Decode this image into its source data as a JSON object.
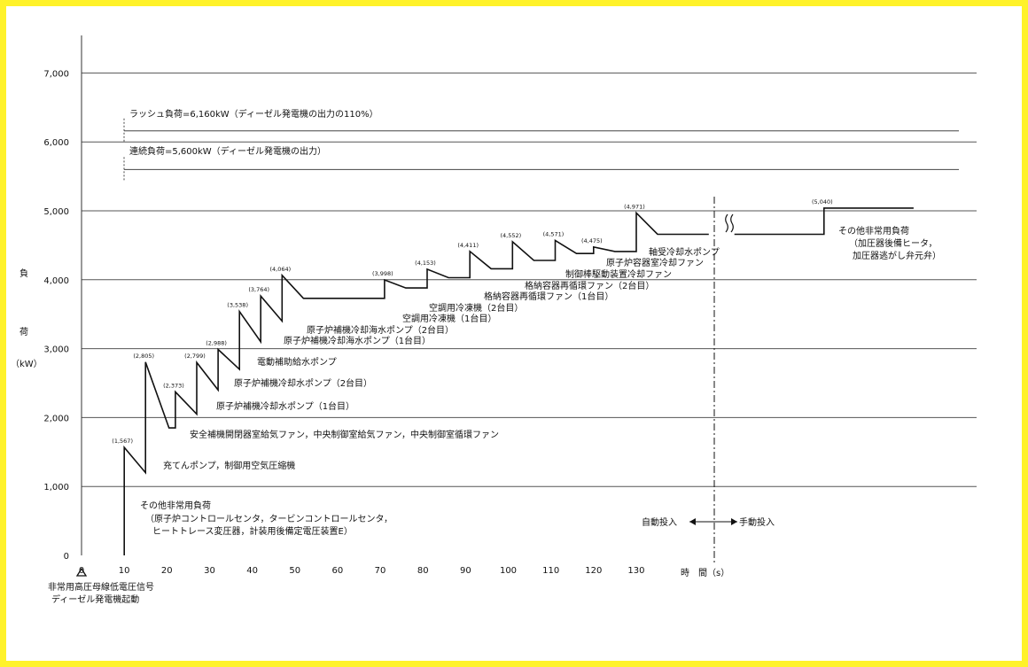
{
  "chart_data": {
    "type": "line",
    "title": "",
    "xlabel": "時　間（s）",
    "ylabel": [
      "負",
      "荷",
      "（kW）"
    ],
    "x_ticks": [
      "0",
      "10",
      "20",
      "30",
      "40",
      "50",
      "60",
      "70",
      "80",
      "90",
      "100",
      "110",
      "120",
      "130"
    ],
    "y_ticks": [
      "0",
      "1,000",
      "2,000",
      "3,000",
      "4,000",
      "5,000",
      "6,000",
      "7,000"
    ],
    "xlim": [
      0,
      140
    ],
    "ylim": [
      0,
      7000
    ],
    "grid": "horizontal",
    "ref_lines": [
      {
        "value": 6160,
        "label": "ラッシュ負荷=6,160kW（ディーゼル発電機の出力の110%）"
      },
      {
        "value": 5600,
        "label": "連続負荷=5,600kW（ディーゼル発電機の出力）"
      }
    ],
    "series": [
      {
        "points": [
          [
            10,
            0
          ],
          [
            10,
            1567
          ],
          [
            15,
            1200
          ],
          [
            15,
            2805
          ],
          [
            20.5,
            1850
          ],
          [
            22,
            1850
          ],
          [
            22,
            2373
          ],
          [
            27,
            2050
          ],
          [
            27,
            2799
          ],
          [
            32,
            2400
          ],
          [
            32,
            2988
          ],
          [
            37,
            2700
          ],
          [
            37,
            3538
          ],
          [
            42,
            3100
          ],
          [
            42,
            3764
          ],
          [
            47,
            3400
          ],
          [
            47,
            4064
          ],
          [
            52,
            3730
          ],
          [
            71,
            3730
          ],
          [
            71,
            3998
          ],
          [
            76,
            3880
          ],
          [
            81,
            3880
          ],
          [
            81,
            4153
          ],
          [
            86,
            4030
          ],
          [
            91,
            4030
          ],
          [
            91,
            4411
          ],
          [
            96,
            4160
          ],
          [
            101,
            4160
          ],
          [
            101,
            4552
          ],
          [
            106,
            4280
          ],
          [
            111,
            4280
          ],
          [
            111,
            4571
          ],
          [
            116,
            4380
          ],
          [
            120,
            4380
          ],
          [
            120,
            4475
          ],
          [
            125,
            4410
          ],
          [
            130,
            4410
          ],
          [
            130,
            4971
          ],
          [
            135,
            4660
          ],
          [
            147,
            4660
          ]
        ]
      },
      {
        "points": [
          [
            153,
            4660
          ],
          [
            174,
            4660
          ],
          [
            174,
            5040
          ],
          [
            195,
            5040
          ]
        ]
      }
    ],
    "peak_labels": [
      {
        "x": 10,
        "y": 1567,
        "text": "(1,567)"
      },
      {
        "x": 15,
        "y": 2805,
        "text": "(2,805)"
      },
      {
        "x": 22,
        "y": 2373,
        "text": "(2,373)"
      },
      {
        "x": 27,
        "y": 2799,
        "text": "(2,799)"
      },
      {
        "x": 32,
        "y": 2988,
        "text": "(2,988)"
      },
      {
        "x": 37,
        "y": 3538,
        "text": "(3,538)"
      },
      {
        "x": 42,
        "y": 3764,
        "text": "(3,764)"
      },
      {
        "x": 47,
        "y": 4064,
        "text": "(4,064)"
      },
      {
        "x": 71,
        "y": 3998,
        "text": "(3,998)"
      },
      {
        "x": 81,
        "y": 4153,
        "text": "(4,153)"
      },
      {
        "x": 91,
        "y": 4411,
        "text": "(4,411)"
      },
      {
        "x": 101,
        "y": 4552,
        "text": "(4,552)"
      },
      {
        "x": 111,
        "y": 4571,
        "text": "(4,571)"
      },
      {
        "x": 120,
        "y": 4475,
        "text": "(4,475)"
      },
      {
        "x": 130,
        "y": 4971,
        "text": "(4,971)"
      },
      {
        "x": 174,
        "y": 5040,
        "text": "(5,040)"
      }
    ],
    "annotations": {
      "other_loads_1": "その他非常用負荷",
      "other_loads_2": "（原子炉コントロールセンタ，タービンコントロールセンタ，",
      "other_loads_3": "ヒートトレース変圧器，計装用後備定電圧装置E）",
      "charging_pump": "充てんポンプ，制御用空気圧縮機",
      "safety_fans": "安全補機開閉器室給気ファン，中央制御室給気ファン，中央制御室循環ファン",
      "ccw_pump_1": "原子炉補機冷却水ポンプ（1台目）",
      "ccw_pump_2": "原子炉補機冷却水ポンプ（2台目）",
      "motor_afw_pump": "電動補助給水ポンプ",
      "swp_1": "原子炉補機冷却海水ポンプ（1台目）",
      "swp_2": "原子炉補機冷却海水ポンプ（2台目）",
      "chiller_1": "空調用冷凍機（1台目）",
      "chiller_2": "空調用冷凍機（2台目）",
      "cv_recirc_1": "格納容器再循環ファン（1台目）",
      "cv_recirc_2": "格納容器再循環ファン（2台目）",
      "crdm_fan": "制御棒駆動装置冷却ファン",
      "rv_fan": "原子炉容器室冷却ファン",
      "bearing_pump": "軸受冷却水ポンプ",
      "other_loads_late_1": "その他非常用負荷",
      "other_loads_late_2": "（加圧器後備ヒータ，",
      "other_loads_late_3": "加圧器逃がし弁元弁）",
      "auto_input": "自動投入",
      "manual_input": "手動投入",
      "start_signal_1": "非常用高圧母線低電圧信号",
      "start_signal_2": "ディーゼル発電機起動"
    }
  }
}
